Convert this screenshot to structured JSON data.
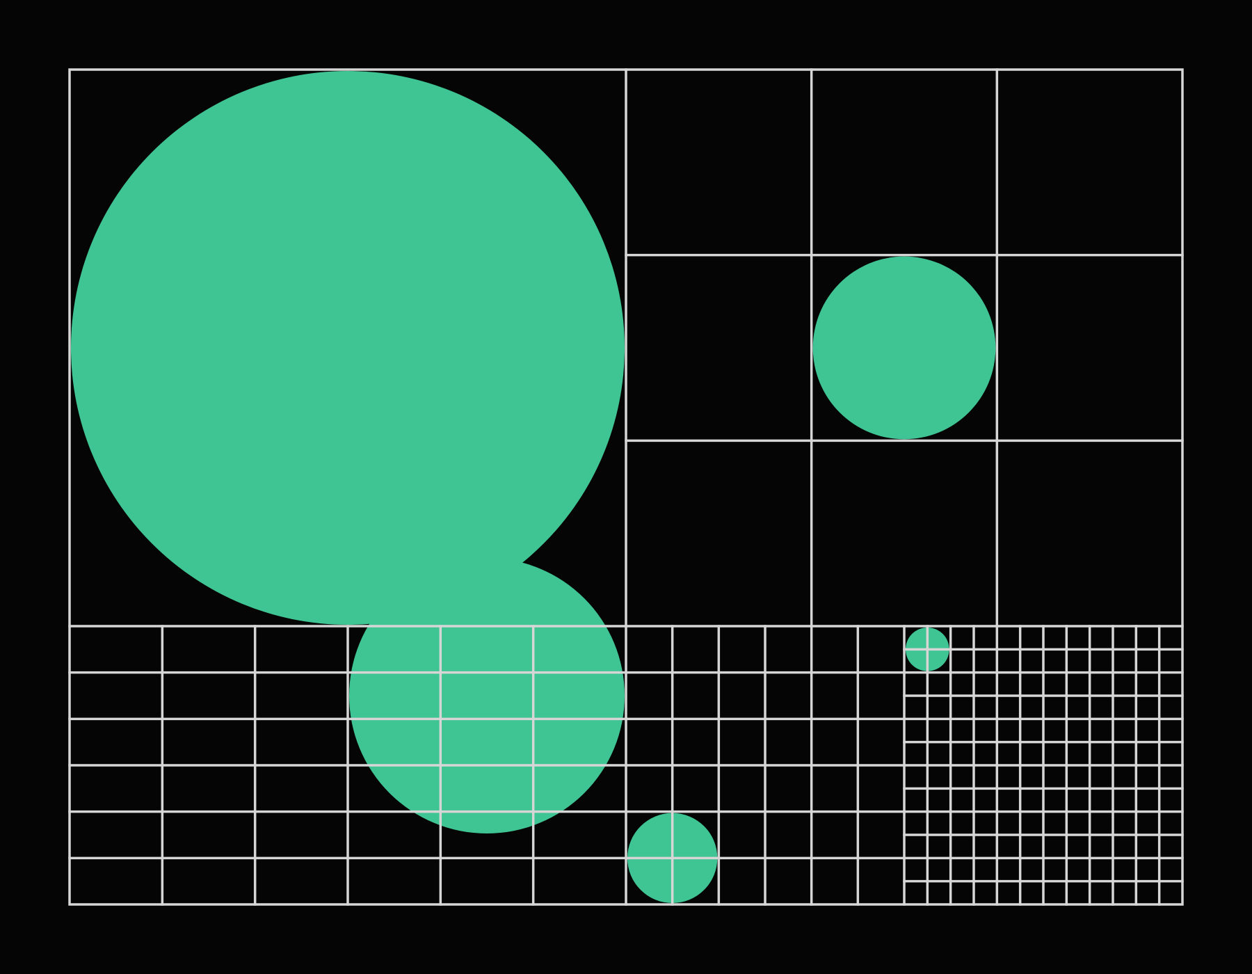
{
  "colors": {
    "background": "#050505",
    "circle_fill": "#3fc493",
    "grid_line": "#d6d6d6"
  },
  "structure": {
    "quadrants": [
      {
        "name": "top-left",
        "divisions": 1,
        "circle_cell": [
          0,
          0
        ],
        "circle_cells_spanned": 1
      },
      {
        "name": "top-right",
        "divisions": 3,
        "circle_cell": [
          1,
          1
        ],
        "circle_cells_spanned": 1
      },
      {
        "name": "bottom-left",
        "divisions": 6,
        "circle_cell": [
          3,
          0
        ],
        "circle_cells_spanned": 3
      },
      {
        "name": "bottom-right-left-half",
        "divisions": 6,
        "circle_cell": [
          0,
          4
        ],
        "circle_cells_spanned": 2
      },
      {
        "name": "bottom-right-right-half",
        "divisions": 12,
        "circle_cell": [
          0,
          0
        ],
        "circle_cells_spanned": 2
      }
    ]
  }
}
